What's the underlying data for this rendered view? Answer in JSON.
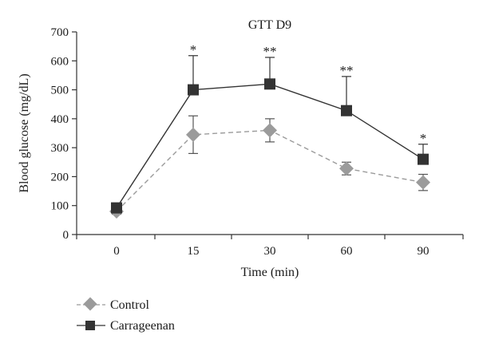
{
  "chart_data": {
    "type": "line",
    "title": "GTT D9",
    "xlabel": "Time (min)",
    "ylabel": "Blood glucose (mg/dL)",
    "categories": [
      "0",
      "15",
      "30",
      "60",
      "90"
    ],
    "ylim": [
      0,
      700
    ],
    "yticks": [
      "0",
      "100",
      "200",
      "300",
      "400",
      "500",
      "600",
      "700"
    ],
    "grid": false,
    "legend_position": "bottom-left",
    "series": [
      {
        "name": "Control",
        "marker": "diamond",
        "line_style": "dashed",
        "color": "#9b9b9b",
        "values": [
          80,
          345,
          360,
          228,
          180
        ],
        "error": [
          10,
          65,
          40,
          22,
          28
        ]
      },
      {
        "name": "Carrageenan",
        "marker": "square",
        "line_style": "solid",
        "color": "#333333",
        "values": [
          92,
          500,
          520,
          428,
          260
        ],
        "error": [
          10,
          118,
          92,
          118,
          52
        ]
      }
    ],
    "significance": [
      "",
      "*",
      "**",
      "**",
      "*"
    ]
  }
}
